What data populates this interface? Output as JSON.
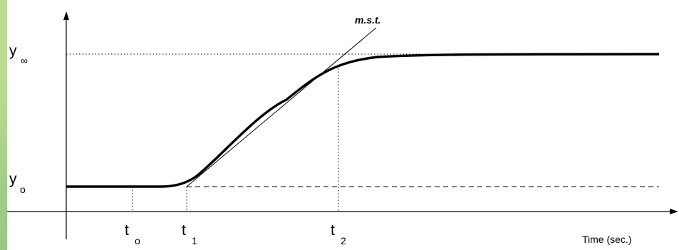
{
  "slide": {
    "background_color": "#8fc47a",
    "panel_color": "#ffffff"
  },
  "diagram": {
    "annotation": "m.s.t.",
    "y_axis_labels": {
      "y_inf_main": "y",
      "y_inf_sub": "∞",
      "y_0_main": "y",
      "y_0_sub": "o"
    },
    "x_axis_labels": {
      "t0_main": "t",
      "t0_sub": "o",
      "t1_main": "t",
      "t1_sub": "1",
      "t2_main": "t",
      "t2_sub": "2"
    },
    "x_axis_title": "Time (sec.)"
  }
}
